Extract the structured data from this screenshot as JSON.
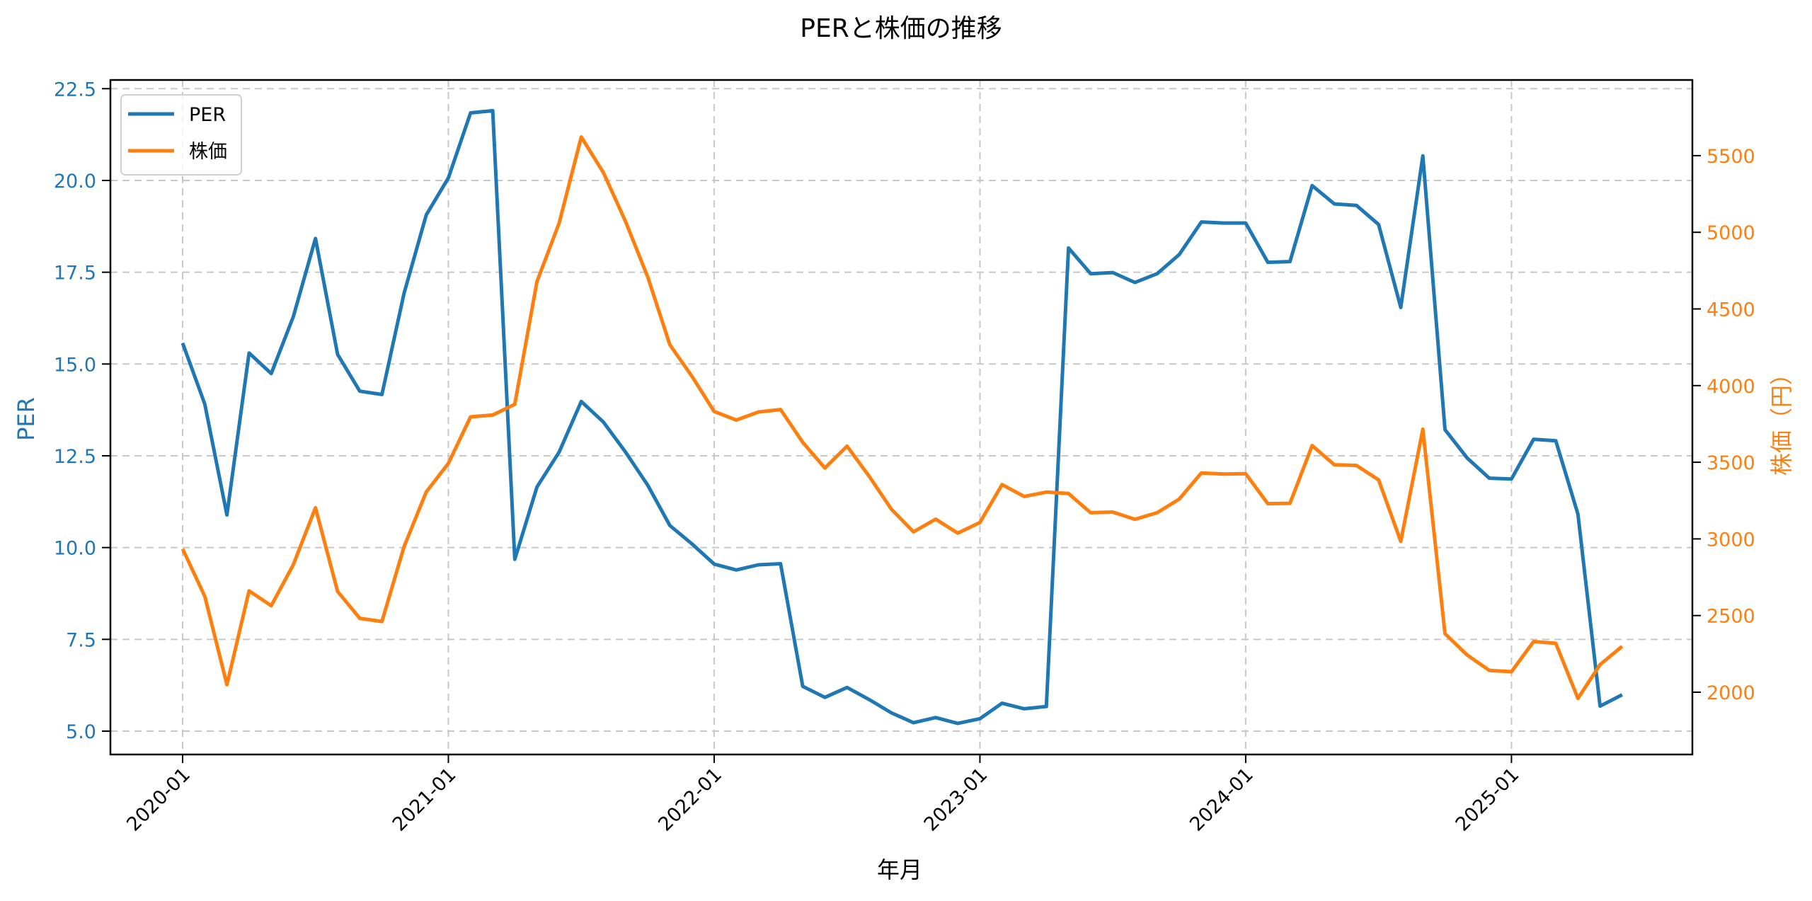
{
  "chart_data": {
    "type": "line",
    "title": "PERと株価の推移",
    "xlabel": "年月",
    "ylabel": "PER",
    "y2label": "株価（円）",
    "x_tick_labels": [
      "2020-01",
      "2021-01",
      "2022-01",
      "2023-01",
      "2024-01",
      "2025-01"
    ],
    "y_ticks": [
      5.0,
      7.5,
      10.0,
      12.5,
      15.0,
      17.5,
      20.0,
      22.5
    ],
    "y2_ticks": [
      2000,
      2500,
      3000,
      3500,
      4000,
      4500,
      5000,
      5500
    ],
    "ylim": [
      4.4,
      23.2
    ],
    "y2lim": [
      1600,
      5985
    ],
    "grid": true,
    "legend_position": "upper left",
    "x": [
      "2020-01",
      "2020-02",
      "2020-03",
      "2020-04",
      "2020-05",
      "2020-06",
      "2020-07",
      "2020-08",
      "2020-09",
      "2020-10",
      "2020-11",
      "2020-12",
      "2021-01",
      "2021-02",
      "2021-03",
      "2021-04",
      "2021-05",
      "2021-06",
      "2021-07",
      "2021-08",
      "2021-09",
      "2021-10",
      "2021-11",
      "2021-12",
      "2022-01",
      "2022-02",
      "2022-03",
      "2022-04",
      "2022-05",
      "2022-06",
      "2022-07",
      "2022-08",
      "2022-09",
      "2022-10",
      "2022-11",
      "2022-12",
      "2023-01",
      "2023-02",
      "2023-03",
      "2023-04",
      "2023-05",
      "2023-06",
      "2023-07",
      "2023-08",
      "2023-09",
      "2023-10",
      "2023-11",
      "2023-12",
      "2024-01",
      "2024-02",
      "2024-03",
      "2024-04",
      "2024-05",
      "2024-06",
      "2024-07",
      "2024-08",
      "2024-09",
      "2024-10",
      "2024-11",
      "2024-12",
      "2025-01",
      "2025-02",
      "2025-03",
      "2025-04",
      "2025-05",
      "2025-06"
    ],
    "series": [
      {
        "name": "PER",
        "axis": "left",
        "color": "#1f77b4",
        "values": [
          15.57,
          13.91,
          10.89,
          15.3,
          14.74,
          16.29,
          18.42,
          15.26,
          14.26,
          14.17,
          16.93,
          19.06,
          20.07,
          21.84,
          21.9,
          9.68,
          11.65,
          12.6,
          13.98,
          13.42,
          12.6,
          11.7,
          10.6,
          10.1,
          9.55,
          9.39,
          9.53,
          9.56,
          6.22,
          5.92,
          6.19,
          5.86,
          5.5,
          5.23,
          5.37,
          5.21,
          5.34,
          5.76,
          5.61,
          5.67,
          18.16,
          17.46,
          17.49,
          17.22,
          17.46,
          17.98,
          18.87,
          18.84,
          18.84,
          17.77,
          17.79,
          19.86,
          19.36,
          19.32,
          18.8,
          16.54,
          20.67,
          13.21,
          12.44,
          11.89,
          11.87,
          12.95,
          12.91,
          10.91,
          5.68,
          5.99
        ]
      },
      {
        "name": "株価",
        "axis": "right",
        "color": "#ff7f0e",
        "values": [
          2935,
          2626,
          2049,
          2661,
          2564,
          2832,
          3203,
          2657,
          2482,
          2461,
          2950,
          3306,
          3493,
          3796,
          3808,
          3878,
          4678,
          5059,
          5622,
          5389,
          5070,
          4709,
          4266,
          4060,
          3831,
          3775,
          3828,
          3844,
          3630,
          3462,
          3605,
          3408,
          3194,
          3046,
          3129,
          3038,
          3107,
          3354,
          3277,
          3305,
          3296,
          3171,
          3175,
          3128,
          3171,
          3260,
          3430,
          3423,
          3425,
          3230,
          3232,
          3609,
          3484,
          3479,
          3385,
          2984,
          3715,
          2382,
          2243,
          2142,
          2134,
          2330,
          2319,
          1960,
          2180,
          2299
        ]
      }
    ]
  },
  "colors": {
    "per": "#1f77b4",
    "price": "#ff7f0e",
    "grid": "#c8c8c8",
    "frame": "#000000"
  },
  "legend": {
    "items": [
      {
        "label": "PER",
        "color": "#1f77b4"
      },
      {
        "label": "株価",
        "color": "#ff7f0e"
      }
    ]
  }
}
